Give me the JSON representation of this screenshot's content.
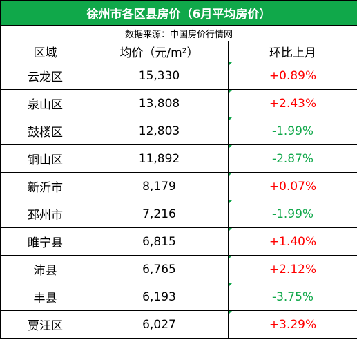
{
  "header": {
    "title": "徐州市各区县房价（6月平均房价）",
    "source": "数据来源：中国房价行情网"
  },
  "table": {
    "columns": [
      "区域",
      "均价（元/m²）",
      "环比上月"
    ],
    "rows": [
      [
        "云龙区",
        "15,330",
        "+0.89%"
      ],
      [
        "泉山区",
        "13,808",
        "+2.43%"
      ],
      [
        "鼓楼区",
        "12,803",
        "-1.99%"
      ],
      [
        "铜山区",
        "11,892",
        "-2.87%"
      ],
      [
        "新沂市",
        "8,179",
        "+0.07%"
      ],
      [
        "邳州市",
        "7,216",
        "-1.99%"
      ],
      [
        "睢宁县",
        "6,815",
        "+1.40%"
      ],
      [
        "沛县",
        "6,765",
        "+2.12%"
      ],
      [
        "丰县",
        "6,193",
        "-3.75%"
      ],
      [
        "贾汪区",
        "6,027",
        "+3.29%"
      ]
    ]
  }
}
